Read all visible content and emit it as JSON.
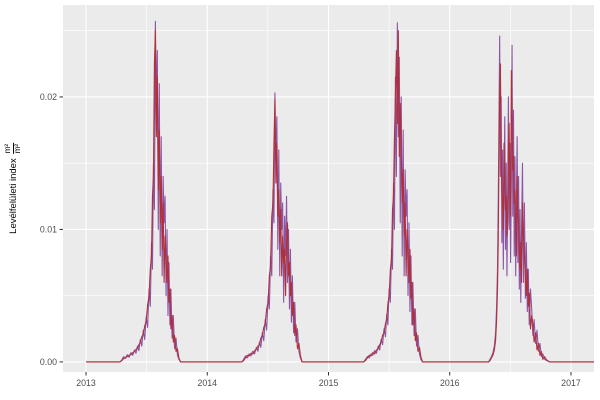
{
  "figure": {
    "background": "#FFFFFF",
    "panel_background": "#EBEBEB",
    "grid_color": "#FFFFFF",
    "tick_mark_color": "#333333",
    "tick_label_color": "#4D4D4D",
    "axis_title_color": "#000000"
  },
  "y_axis": {
    "title_prefix": "Levélfelületi index",
    "title_fraction_numerator": "m²",
    "title_fraction_denominator": "m²",
    "tick_labels": [
      "0.00",
      "0.01",
      "0.02"
    ]
  },
  "x_axis": {
    "tick_labels": [
      "2013",
      "2014",
      "2015",
      "2016",
      "2017"
    ]
  },
  "chart_data": {
    "type": "line",
    "title": "",
    "xlabel": "",
    "ylabel": "Levélfelületi index (m²/m²)",
    "grid": true,
    "legend": "none",
    "x_range": [
      2012.81,
      2017.19
    ],
    "y_range": [
      -0.00076,
      0.02694
    ],
    "x_major_ticks": [
      2013,
      2014,
      2015,
      2016,
      2017
    ],
    "x_minor_gridlines": [
      2013.5,
      2014.5,
      2015.5,
      2016.5
    ],
    "y_major_ticks": [
      0,
      0.01,
      0.02
    ],
    "y_minor_gridlines": [
      0.005,
      0.015,
      0.025
    ],
    "series": [
      {
        "name": "lai-series-purple",
        "color": "#8A56A5",
        "column": 1
      },
      {
        "name": "lai-series-red",
        "color": "#B0303A",
        "column": 2
      }
    ],
    "points": [
      [
        2013.0,
        0,
        0
      ],
      [
        2013.28,
        0,
        0
      ],
      [
        2013.295,
        0.00015,
        0.0001
      ],
      [
        2013.31,
        0.0004,
        0.00025
      ],
      [
        2013.325,
        0.00025,
        0.00035
      ],
      [
        2013.34,
        0.00055,
        0.0004
      ],
      [
        2013.355,
        0.00035,
        0.0005
      ],
      [
        2013.37,
        0.0007,
        0.00055
      ],
      [
        2013.385,
        0.0005,
        0.0007
      ],
      [
        2013.4,
        0.0009,
        0.0008
      ],
      [
        2013.412,
        0.00065,
        0.00095
      ],
      [
        2013.424,
        0.0012,
        0.001
      ],
      [
        2013.436,
        0.00085,
        0.0013
      ],
      [
        2013.448,
        0.0017,
        0.0015
      ],
      [
        2013.46,
        0.0012,
        0.0019
      ],
      [
        2013.472,
        0.0024,
        0.0021
      ],
      [
        2013.484,
        0.0017,
        0.0027
      ],
      [
        2013.496,
        0.0034,
        0.0031
      ],
      [
        2013.508,
        0.0026,
        0.0043
      ],
      [
        2013.52,
        0.0055,
        0.005
      ],
      [
        2013.53,
        0.0042,
        0.007
      ],
      [
        2013.54,
        0.009,
        0.008
      ],
      [
        2013.548,
        0.007,
        0.0125
      ],
      [
        2013.556,
        0.015,
        0.014
      ],
      [
        2013.564,
        0.0115,
        0.0225
      ],
      [
        2013.572,
        0.0257,
        0.025
      ],
      [
        2013.58,
        0.019,
        0.017
      ],
      [
        2013.588,
        0.0235,
        0.0215
      ],
      [
        2013.596,
        0.01,
        0.013
      ],
      [
        2013.604,
        0.021,
        0.0175
      ],
      [
        2013.612,
        0.008,
        0.0105
      ],
      [
        2013.62,
        0.017,
        0.014
      ],
      [
        2013.628,
        0.0065,
        0.0085
      ],
      [
        2013.636,
        0.014,
        0.012
      ],
      [
        2013.644,
        0.0105,
        0.006
      ],
      [
        2013.652,
        0.0125,
        0.0095
      ],
      [
        2013.66,
        0.005,
        0.0075
      ],
      [
        2013.668,
        0.01,
        0.006
      ],
      [
        2013.676,
        0.0035,
        0.008
      ],
      [
        2013.684,
        0.0075,
        0.0045
      ],
      [
        2013.692,
        0.0028,
        0.0055
      ],
      [
        2013.7,
        0.0055,
        0.0025
      ],
      [
        2013.71,
        0.0018,
        0.0035
      ],
      [
        2013.72,
        0.0035,
        0.0015
      ],
      [
        2013.73,
        0.001,
        0.002
      ],
      [
        2013.742,
        0.0018,
        0.0008
      ],
      [
        2013.754,
        0.0005,
        0.001
      ],
      [
        2013.766,
        0.0002,
        0.0003
      ],
      [
        2013.78,
        0,
        0
      ],
      [
        2014.285,
        0,
        0
      ],
      [
        2014.3,
        0.0002,
        0.0001
      ],
      [
        2014.315,
        0.00045,
        0.0003
      ],
      [
        2014.33,
        0.0003,
        0.0005
      ],
      [
        2014.345,
        0.0006,
        0.00045
      ],
      [
        2014.36,
        0.00045,
        0.00065
      ],
      [
        2014.375,
        0.0008,
        0.0006
      ],
      [
        2014.39,
        0.0006,
        0.00085
      ],
      [
        2014.405,
        0.0011,
        0.00095
      ],
      [
        2014.418,
        0.0008,
        0.0012
      ],
      [
        2014.43,
        0.0015,
        0.0013
      ],
      [
        2014.442,
        0.0011,
        0.0018
      ],
      [
        2014.454,
        0.0022,
        0.002
      ],
      [
        2014.466,
        0.0016,
        0.0026
      ],
      [
        2014.478,
        0.0032,
        0.0029
      ],
      [
        2014.49,
        0.0024,
        0.004
      ],
      [
        2014.502,
        0.005,
        0.0045
      ],
      [
        2014.512,
        0.004,
        0.0065
      ],
      [
        2014.522,
        0.008,
        0.0072
      ],
      [
        2014.532,
        0.0065,
        0.011
      ],
      [
        2014.542,
        0.013,
        0.012
      ],
      [
        2014.55,
        0.0105,
        0.0165
      ],
      [
        2014.558,
        0.0203,
        0.0198
      ],
      [
        2014.566,
        0.015,
        0.0135
      ],
      [
        2014.574,
        0.0185,
        0.0165
      ],
      [
        2014.582,
        0.0085,
        0.011
      ],
      [
        2014.59,
        0.016,
        0.013
      ],
      [
        2014.598,
        0.0065,
        0.009
      ],
      [
        2014.606,
        0.0135,
        0.0115
      ],
      [
        2014.614,
        0.01,
        0.0065
      ],
      [
        2014.622,
        0.012,
        0.0095
      ],
      [
        2014.63,
        0.0045,
        0.0075
      ],
      [
        2014.638,
        0.011,
        0.0085
      ],
      [
        2014.646,
        0.008,
        0.005
      ],
      [
        2014.654,
        0.0125,
        0.009
      ],
      [
        2014.662,
        0.006,
        0.0105
      ],
      [
        2014.67,
        0.01,
        0.0065
      ],
      [
        2014.678,
        0.004,
        0.0075
      ],
      [
        2014.686,
        0.0085,
        0.005
      ],
      [
        2014.694,
        0.003,
        0.006
      ],
      [
        2014.702,
        0.0065,
        0.0035
      ],
      [
        2014.712,
        0.0022,
        0.0045
      ],
      [
        2014.722,
        0.0045,
        0.002
      ],
      [
        2014.732,
        0.0015,
        0.0028
      ],
      [
        2014.744,
        0.0025,
        0.001
      ],
      [
        2014.756,
        0.0008,
        0.0014
      ],
      [
        2014.768,
        0.0003,
        0.0005
      ],
      [
        2014.782,
        0,
        0
      ],
      [
        2015.29,
        0,
        0
      ],
      [
        2015.305,
        0.0002,
        0.0001
      ],
      [
        2015.32,
        0.0004,
        0.0003
      ],
      [
        2015.335,
        0.0003,
        0.0005
      ],
      [
        2015.35,
        0.0006,
        0.00045
      ],
      [
        2015.365,
        0.0005,
        0.0007
      ],
      [
        2015.38,
        0.00085,
        0.0006
      ],
      [
        2015.395,
        0.00065,
        0.0009
      ],
      [
        2015.41,
        0.0012,
        0.001
      ],
      [
        2015.422,
        0.0009,
        0.0013
      ],
      [
        2015.434,
        0.0017,
        0.0015
      ],
      [
        2015.446,
        0.0013,
        0.002
      ],
      [
        2015.458,
        0.0025,
        0.0022
      ],
      [
        2015.47,
        0.0019,
        0.0029
      ],
      [
        2015.48,
        0.0036,
        0.0032
      ],
      [
        2015.49,
        0.0028,
        0.0044
      ],
      [
        2015.5,
        0.0055,
        0.005
      ],
      [
        2015.51,
        0.0045,
        0.007
      ],
      [
        2015.52,
        0.0085,
        0.0078
      ],
      [
        2015.528,
        0.007,
        0.0115
      ],
      [
        2015.536,
        0.0135,
        0.0125
      ],
      [
        2015.544,
        0.01,
        0.017
      ],
      [
        2015.552,
        0.0215,
        0.02
      ],
      [
        2015.56,
        0.014,
        0.0235
      ],
      [
        2015.568,
        0.0256,
        0.018
      ],
      [
        2015.576,
        0.017,
        0.025
      ],
      [
        2015.584,
        0.023,
        0.0155
      ],
      [
        2015.592,
        0.0105,
        0.0195
      ],
      [
        2015.6,
        0.02,
        0.016
      ],
      [
        2015.608,
        0.008,
        0.012
      ],
      [
        2015.616,
        0.0175,
        0.0145
      ],
      [
        2015.624,
        0.0065,
        0.0095
      ],
      [
        2015.632,
        0.0145,
        0.012
      ],
      [
        2015.64,
        0.011,
        0.0065
      ],
      [
        2015.648,
        0.013,
        0.01
      ],
      [
        2015.656,
        0.005,
        0.008
      ],
      [
        2015.664,
        0.0105,
        0.006
      ],
      [
        2015.672,
        0.0038,
        0.0085
      ],
      [
        2015.68,
        0.008,
        0.0048
      ],
      [
        2015.688,
        0.0028,
        0.006
      ],
      [
        2015.696,
        0.006,
        0.0028
      ],
      [
        2015.706,
        0.002,
        0.004
      ],
      [
        2015.716,
        0.004,
        0.0016
      ],
      [
        2015.726,
        0.0012,
        0.0022
      ],
      [
        2015.738,
        0.002,
        0.0008
      ],
      [
        2015.75,
        0.0006,
        0.0011
      ],
      [
        2015.762,
        0.0002,
        0.0004
      ],
      [
        2015.776,
        0,
        0
      ],
      [
        2016.32,
        0,
        0
      ],
      [
        2016.332,
        0.0002,
        0.0001
      ],
      [
        2016.344,
        0.0004,
        0.0003
      ],
      [
        2016.356,
        0.0007,
        0.0005
      ],
      [
        2016.368,
        0.0012,
        0.0009
      ],
      [
        2016.378,
        0.0022,
        0.0016
      ],
      [
        2016.386,
        0.004,
        0.003
      ],
      [
        2016.394,
        0.007,
        0.0055
      ],
      [
        2016.4,
        0.012,
        0.009
      ],
      [
        2016.406,
        0.018,
        0.015
      ],
      [
        2016.412,
        0.0246,
        0.02
      ],
      [
        2016.418,
        0.014,
        0.0225
      ],
      [
        2016.424,
        0.02,
        0.016
      ],
      [
        2016.43,
        0.009,
        0.013
      ],
      [
        2016.436,
        0.016,
        0.012
      ],
      [
        2016.442,
        0.007,
        0.01
      ],
      [
        2016.448,
        0.013,
        0.0165
      ],
      [
        2016.454,
        0.0185,
        0.014
      ],
      [
        2016.46,
        0.0085,
        0.0115
      ],
      [
        2016.466,
        0.015,
        0.0125
      ],
      [
        2016.472,
        0.0065,
        0.0095
      ],
      [
        2016.478,
        0.0125,
        0.0105
      ],
      [
        2016.484,
        0.02,
        0.016
      ],
      [
        2016.49,
        0.01,
        0.018
      ],
      [
        2016.496,
        0.0165,
        0.013
      ],
      [
        2016.502,
        0.0075,
        0.011
      ],
      [
        2016.508,
        0.0135,
        0.022
      ],
      [
        2016.514,
        0.0239,
        0.0185
      ],
      [
        2016.52,
        0.011,
        0.0145
      ],
      [
        2016.526,
        0.019,
        0.0155
      ],
      [
        2016.532,
        0.008,
        0.012
      ],
      [
        2016.538,
        0.0155,
        0.013
      ],
      [
        2016.544,
        0.0065,
        0.01
      ],
      [
        2016.55,
        0.012,
        0.008
      ],
      [
        2016.556,
        0.017,
        0.014
      ],
      [
        2016.562,
        0.0075,
        0.011
      ],
      [
        2016.568,
        0.014,
        0.0105
      ],
      [
        2016.574,
        0.0055,
        0.0085
      ],
      [
        2016.58,
        0.0115,
        0.007
      ],
      [
        2016.586,
        0.0045,
        0.009
      ],
      [
        2016.592,
        0.0095,
        0.006
      ],
      [
        2016.6,
        0.015,
        0.012
      ],
      [
        2016.608,
        0.006,
        0.0095
      ],
      [
        2016.616,
        0.012,
        0.008
      ],
      [
        2016.624,
        0.0048,
        0.0065
      ],
      [
        2016.632,
        0.009,
        0.005
      ],
      [
        2016.64,
        0.0038,
        0.007
      ],
      [
        2016.648,
        0.007,
        0.0042
      ],
      [
        2016.656,
        0.0028,
        0.0052
      ],
      [
        2016.666,
        0.0055,
        0.0025
      ],
      [
        2016.676,
        0.004,
        0.0035
      ],
      [
        2016.686,
        0.002,
        0.0028
      ],
      [
        2016.696,
        0.0032,
        0.0015
      ],
      [
        2016.708,
        0.0014,
        0.0022
      ],
      [
        2016.72,
        0.0024,
        0.0009
      ],
      [
        2016.732,
        0.0008,
        0.0014
      ],
      [
        2016.744,
        0.0014,
        0.0005
      ],
      [
        2016.756,
        0.0004,
        0.0008
      ],
      [
        2016.768,
        0.0006,
        0.0002
      ],
      [
        2016.782,
        0.0002,
        0.0004
      ],
      [
        2016.8,
        0.0001,
        0.00015
      ],
      [
        2016.824,
        0,
        0
      ],
      [
        2017.19,
        0,
        0
      ]
    ]
  }
}
